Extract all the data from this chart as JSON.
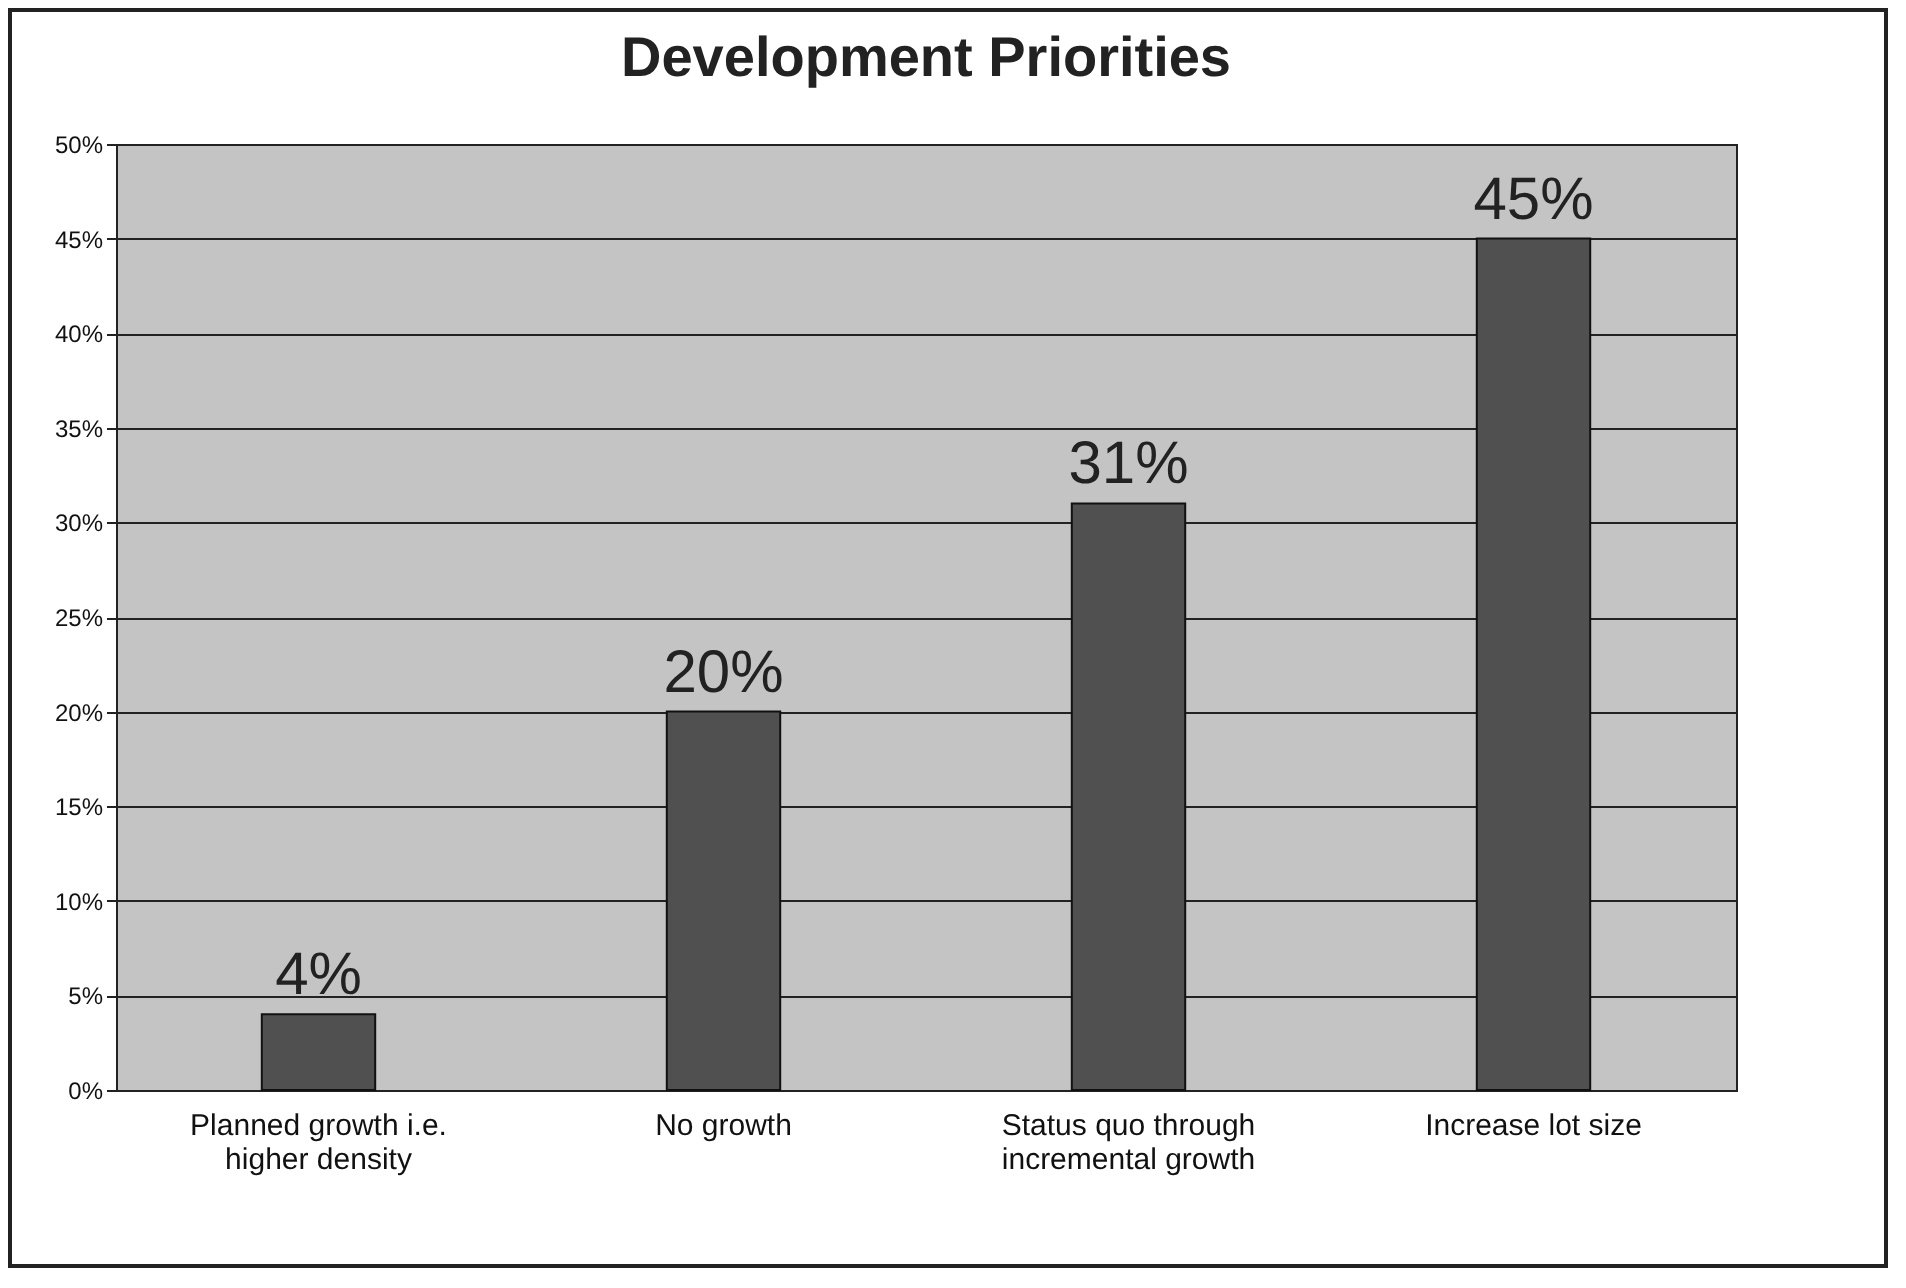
{
  "chart_data": {
    "type": "bar",
    "title": "Development Priorities",
    "categories": [
      "Planned growth i.e. higher density",
      "No growth",
      "Status quo through incremental growth",
      "Increase lot size"
    ],
    "values": [
      4,
      20,
      31,
      45
    ],
    "color": "#505050",
    "value_labels": [
      "4%",
      "20%",
      "31%",
      "45%"
    ],
    "ylim": [
      0,
      50
    ],
    "yticks": [
      {
        "value": 0,
        "label": "0%"
      },
      {
        "value": 5,
        "label": "5%"
      },
      {
        "value": 10,
        "label": "10%"
      },
      {
        "value": 15,
        "label": "15%"
      },
      {
        "value": 20,
        "label": "20%"
      },
      {
        "value": 25,
        "label": "25%"
      },
      {
        "value": 30,
        "label": "30%"
      },
      {
        "value": 35,
        "label": "35%"
      },
      {
        "value": 40,
        "label": "40%"
      },
      {
        "value": 45,
        "label": "45%"
      },
      {
        "value": 50,
        "label": "50%"
      }
    ],
    "grid": "y"
  }
}
